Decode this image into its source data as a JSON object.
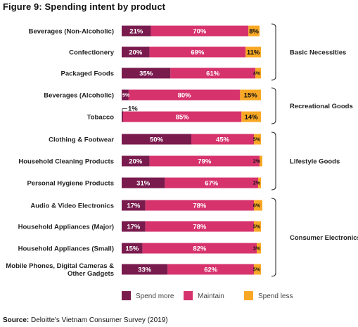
{
  "title": "Figure 9: Spending intent by product",
  "source_label": "Source:",
  "source_text": "Deloitte's Vietnam Consumer Survey (2019)",
  "colors": {
    "spend_more": "#7a1b4e",
    "maintain": "#d6336c",
    "spend_less": "#f9a825"
  },
  "chart_data": {
    "type": "bar",
    "orientation": "horizontal",
    "stacked": true,
    "percent_stacked": true,
    "categories": [
      "Beverages (Non-Alcoholic)",
      "Confectionery",
      "Packaged Foods",
      "Beverages (Alcoholic)",
      "Tobacco",
      "Clothing & Footwear",
      "Household Cleaning Products",
      "Personal Hygiene Products",
      "Audio & Video Electronics",
      "Household Appliances (Major)",
      "Household Appliances (Small)",
      "Mobile Phones, Digital Cameras & Other Gadgets"
    ],
    "series": [
      {
        "name": "Spend more",
        "values": [
          21,
          20,
          35,
          5,
          1,
          50,
          20,
          31,
          17,
          17,
          15,
          33
        ]
      },
      {
        "name": "Maintain",
        "values": [
          70,
          69,
          61,
          80,
          85,
          45,
          79,
          67,
          78,
          78,
          82,
          62
        ]
      },
      {
        "name": "Spend less",
        "values": [
          8,
          11,
          4,
          15,
          14,
          5,
          2,
          2,
          6,
          5,
          3,
          5
        ]
      }
    ],
    "groups": [
      {
        "name": "Basic Necessities",
        "start": 0,
        "end": 2
      },
      {
        "name": "Recreational Goods",
        "start": 3,
        "end": 4
      },
      {
        "name": "Lifestyle Goods",
        "start": 5,
        "end": 7
      },
      {
        "name": "Consumer Electronics",
        "start": 8,
        "end": 11
      }
    ],
    "legend_position": "bottom",
    "xlim": [
      0,
      100
    ]
  }
}
